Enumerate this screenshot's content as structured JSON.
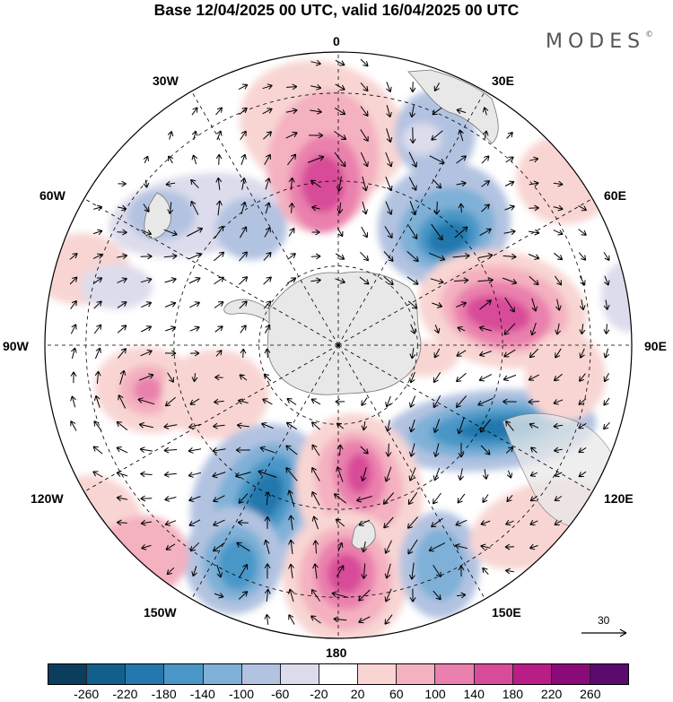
{
  "title": "Base 12/04/2025 00 UTC, valid 16/04/2025 00 UTC",
  "brand": "MODES",
  "brand_mark": "©",
  "longitude_labels": {
    "top": "0",
    "bottom": "180",
    "left": "90W",
    "right": "90E",
    "nw_upper": "30W",
    "nw_lower": "60W",
    "ne_upper": "30E",
    "ne_lower": "60E",
    "sw_upper": "120W",
    "sw_lower": "150W",
    "se_upper": "120E",
    "se_lower": "150E"
  },
  "reference_vector": {
    "label": "30",
    "icon": "arrow-right-icon"
  },
  "colorbar": {
    "ticks": [
      "-260",
      "-220",
      "-180",
      "-140",
      "-100",
      "-60",
      "-20",
      "20",
      "60",
      "100",
      "140",
      "180",
      "220",
      "260"
    ],
    "colors": [
      "#0b3d5c",
      "#135f8c",
      "#2478ad",
      "#4a97c7",
      "#7fb0d7",
      "#b2c3e1",
      "#dcdcec",
      "#ffffff",
      "#f8d5d3",
      "#f4b1c0",
      "#ea80ad",
      "#d84b98",
      "#b81e86",
      "#8a0b78",
      "#5b0a6e"
    ]
  },
  "map": {
    "projection": "south polar stereographic",
    "field_colors": {
      "land": "#e8e8e8",
      "coast": "#777777",
      "grid": "#000000",
      "vector": "#000000"
    }
  }
}
